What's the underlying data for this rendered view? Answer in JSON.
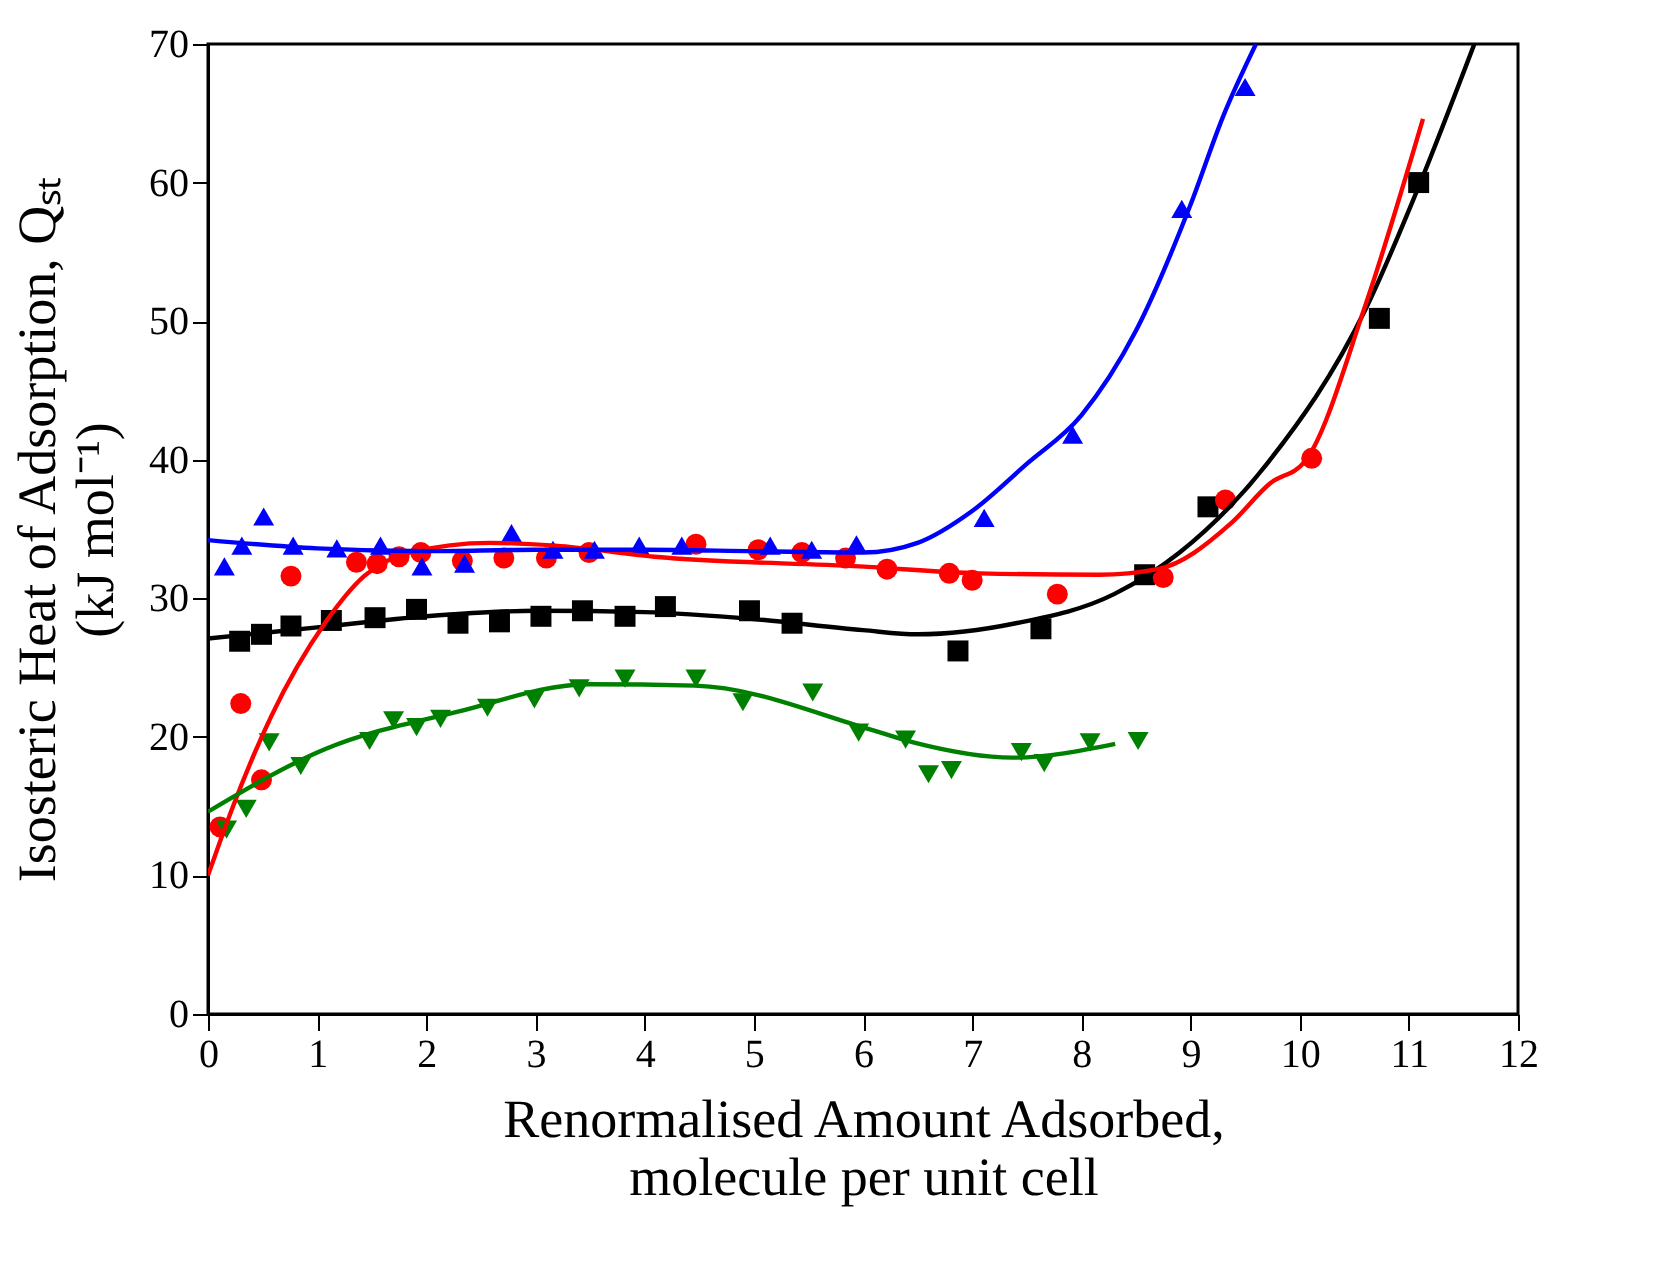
{
  "chart_data": {
    "type": "scatter",
    "xlabel": "Renormalised Amount Adsorbed,\nmolecule per unit cell",
    "ylabel": "Isosteric Heat of Adsorption, Qₛₜ\n(kJ mol⁻¹)",
    "xlim": [
      0,
      12
    ],
    "xticks": [
      0,
      1,
      2,
      3,
      4,
      5,
      6,
      7,
      8,
      9,
      10,
      11,
      12
    ],
    "ylim": [
      0,
      70
    ],
    "yticks": [
      0,
      10,
      20,
      30,
      40,
      50,
      60,
      70
    ],
    "grid": false,
    "series": [
      {
        "marker": "square",
        "color": "#000000",
        "x": [
          0.29,
          0.49,
          0.76,
          1.13,
          1.53,
          1.91,
          2.29,
          2.67,
          3.05,
          3.43,
          3.82,
          4.19,
          4.96,
          5.35,
          6.87,
          7.63,
          8.58,
          9.16,
          10.73,
          11.09
        ],
        "values": [
          26.9,
          27.4,
          28.0,
          28.4,
          28.6,
          29.2,
          28.2,
          28.3,
          28.7,
          29.1,
          28.7,
          29.4,
          29.1,
          28.2,
          26.2,
          27.8,
          31.7,
          36.6,
          50.2,
          60.0
        ]
      },
      {
        "marker": "circle",
        "color": "#ff0000",
        "x": [
          0.11,
          0.3,
          0.49,
          0.76,
          1.36,
          1.55,
          1.75,
          1.95,
          2.33,
          2.71,
          3.1,
          3.49,
          4.47,
          5.04,
          5.44,
          5.84,
          6.22,
          6.79,
          7.0,
          7.78,
          8.75,
          9.32,
          10.11
        ],
        "values": [
          13.5,
          22.4,
          16.9,
          31.6,
          32.6,
          32.5,
          33.0,
          33.3,
          32.7,
          32.9,
          32.9,
          33.3,
          33.9,
          33.5,
          33.3,
          32.9,
          32.1,
          31.8,
          31.3,
          30.3,
          31.5,
          37.1,
          40.1
        ]
      },
      {
        "marker": "triangle",
        "color": "#0000ff",
        "x": [
          0.15,
          0.31,
          0.51,
          0.78,
          1.18,
          1.58,
          1.96,
          2.35,
          2.78,
          3.16,
          3.54,
          3.95,
          4.34,
          5.15,
          5.53,
          5.94,
          7.11,
          7.92,
          8.92,
          9.5
        ],
        "values": [
          32.3,
          33.8,
          35.9,
          33.8,
          33.6,
          33.8,
          32.3,
          32.5,
          34.7,
          33.5,
          33.5,
          33.8,
          33.8,
          33.8,
          33.5,
          33.9,
          35.8,
          41.8,
          58.1,
          66.9
        ]
      },
      {
        "marker": "triangle-down",
        "color": "#008000",
        "x": [
          0.17,
          0.35,
          0.56,
          0.85,
          1.48,
          1.7,
          1.91,
          2.13,
          2.56,
          2.99,
          3.4,
          3.82,
          4.47,
          4.9,
          5.54,
          5.96,
          6.39,
          6.6,
          6.81,
          7.45,
          7.66,
          8.08,
          8.52
        ],
        "values": [
          13.3,
          14.8,
          19.6,
          17.9,
          19.7,
          21.2,
          20.7,
          21.3,
          22.1,
          22.7,
          23.5,
          24.2,
          24.2,
          22.5,
          23.2,
          20.3,
          19.8,
          17.3,
          17.6,
          18.9,
          18.1,
          19.6,
          19.7
        ]
      },
      {
        "type": "line",
        "marker": "none",
        "color": "#000000",
        "x": [
          0,
          1,
          2,
          3,
          4,
          5,
          6,
          6.5,
          7.4,
          8.3,
          8.9,
          9.7,
          10.6,
          11.1,
          11.6
        ],
        "values": [
          27.1,
          27.9,
          28.7,
          29.1,
          29.0,
          28.5,
          27.7,
          27.4,
          28.2,
          30.3,
          33.3,
          39.7,
          50.8,
          59.9,
          70
        ]
      },
      {
        "type": "line",
        "marker": "none",
        "color": "#ff0000",
        "x": [
          0,
          0.22,
          0.58,
          1.07,
          1.43,
          1.85,
          2.58,
          3.18,
          4.09,
          5.97,
          7.07,
          8.16,
          8.7,
          9.37,
          9.73,
          10.05,
          10.6,
          11.13
        ],
        "values": [
          10,
          14.8,
          21.5,
          28.2,
          31.6,
          33.3,
          34.0,
          33.8,
          33.0,
          32.3,
          31.8,
          31.7,
          32.1,
          35.4,
          38.3,
          39.9,
          51.1,
          64.6
        ]
      },
      {
        "type": "line",
        "marker": "none",
        "color": "#0000ff",
        "x": [
          0,
          1,
          2,
          3,
          4,
          5,
          6,
          6.5,
          7,
          7.5,
          8,
          8.5,
          9,
          9.3,
          9.6
        ],
        "values": [
          34.2,
          33.6,
          33.4,
          33.5,
          33.5,
          33.4,
          33.3,
          34.0,
          36.3,
          39.7,
          43.2,
          49.3,
          58.4,
          64.8,
          70
        ]
      },
      {
        "type": "line",
        "marker": "none",
        "color": "#008000",
        "x": [
          0,
          1.07,
          2.28,
          3.49,
          4.46,
          6.04,
          6.46,
          7.37,
          8.31
        ],
        "values": [
          14.6,
          19.1,
          21.8,
          23.8,
          23.7,
          20.6,
          19.6,
          18.5,
          19.5
        ]
      }
    ]
  }
}
